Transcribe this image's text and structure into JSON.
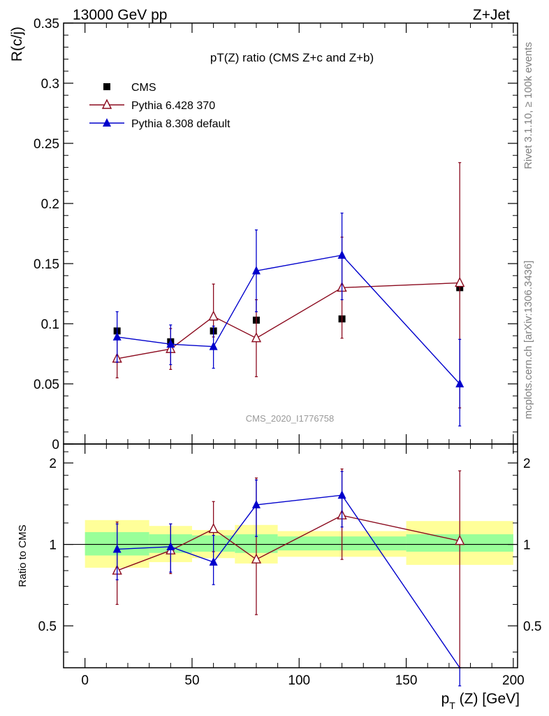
{
  "header": {
    "left": "13000 GeV pp",
    "right": "Z+Jet"
  },
  "side": {
    "rivet": "Rivet 3.1.10, ≥ 100k events",
    "mcplots": "mcplots.cern.ch [arXiv:1306.3436]"
  },
  "chart_data": [
    {
      "type": "scatter",
      "title": "pT(Z) ratio (CMS  Z+c and Z+b)",
      "ylabel": "R(c/j)",
      "watermark": "CMS_2020_I1776758",
      "ylim": [
        0,
        0.35
      ],
      "xlim": [
        -10,
        202
      ],
      "yticks": [
        0,
        0.05,
        0.1,
        0.15,
        0.2,
        0.25,
        0.3,
        0.35
      ],
      "ytick_labels": [
        "0",
        "0.05",
        "0.1",
        "0.15",
        "0.2",
        "0.25",
        "0.3",
        "0.35"
      ],
      "legend_position": "top-left",
      "series": [
        {
          "name": "CMS",
          "marker": "square",
          "color": "#000000",
          "x": [
            15,
            40,
            60,
            80,
            120,
            175
          ],
          "y": [
            0.094,
            0.085,
            0.094,
            0.103,
            0.104,
            0.13
          ]
        },
        {
          "name": "Pythia 6.428 370",
          "marker": "open-triangle",
          "color": "#8b0a1e",
          "x": [
            15,
            40,
            60,
            80,
            120,
            175
          ],
          "y": [
            0.071,
            0.079,
            0.106,
            0.088,
            0.13,
            0.134
          ],
          "err_lo": [
            0.055,
            0.062,
            0.089,
            0.056,
            0.088,
            0.03
          ],
          "err_hi": [
            0.087,
            0.096,
            0.133,
            0.12,
            0.172,
            0.234
          ]
        },
        {
          "name": "Pythia 8.308 default",
          "marker": "filled-triangle",
          "color": "#0000cc",
          "x": [
            15,
            40,
            60,
            80,
            120,
            175
          ],
          "y": [
            0.089,
            0.083,
            0.081,
            0.144,
            0.157,
            0.05
          ],
          "err_lo": [
            0.068,
            0.066,
            0.063,
            0.11,
            0.12,
            0.015
          ],
          "err_hi": [
            0.11,
            0.099,
            0.098,
            0.178,
            0.192,
            0.087
          ]
        }
      ]
    },
    {
      "type": "scatter",
      "ylabel": "Ratio to CMS",
      "xlabel_main": "p",
      "xlabel_sub": "T",
      "xlabel_rest": " (Z) [GeV]",
      "xlim": [
        -10,
        202
      ],
      "ylim_log": [
        0.35,
        2.35
      ],
      "xticks": [
        0,
        50,
        100,
        150,
        200
      ],
      "xtick_labels": [
        "0",
        "50",
        "100",
        "150",
        "200"
      ],
      "yticks": [
        0.5,
        1,
        2
      ],
      "ytick_labels": [
        "0.5",
        "1",
        "2"
      ],
      "bands": {
        "bins": [
          [
            0,
            30
          ],
          [
            30,
            50
          ],
          [
            50,
            70
          ],
          [
            70,
            90
          ],
          [
            90,
            150
          ],
          [
            150,
            200
          ]
        ],
        "inner": [
          [
            0.91,
            1.11
          ],
          [
            0.93,
            1.09
          ],
          [
            0.94,
            1.08
          ],
          [
            0.93,
            1.09
          ],
          [
            0.95,
            1.07
          ],
          [
            0.94,
            1.09
          ]
        ],
        "outer": [
          [
            0.82,
            1.23
          ],
          [
            0.86,
            1.17
          ],
          [
            0.89,
            1.13
          ],
          [
            0.85,
            1.18
          ],
          [
            0.9,
            1.12
          ],
          [
            0.84,
            1.22
          ]
        ],
        "inner_color": "#99ff99",
        "outer_color": "#ffff99"
      },
      "series": [
        {
          "name": "Pythia 6.428 370",
          "color": "#8b0a1e",
          "x": [
            15,
            40,
            60,
            80,
            120,
            175
          ],
          "y": [
            0.8,
            0.95,
            1.14,
            0.88,
            1.28,
            1.03
          ],
          "err_lo": [
            0.6,
            0.78,
            0.94,
            0.55,
            0.88,
            0.3
          ],
          "err_hi": [
            1.21,
            1.19,
            1.44,
            1.76,
            1.9,
            1.87
          ]
        },
        {
          "name": "Pythia 8.308 default",
          "color": "#0000cc",
          "x": [
            15,
            40,
            60,
            80,
            120,
            175
          ],
          "y": [
            0.96,
            0.98,
            0.86,
            1.4,
            1.52,
            0.3
          ],
          "err_lo": [
            0.74,
            0.79,
            0.71,
            1.07,
            1.16,
            0.3
          ],
          "err_hi": [
            1.19,
            1.19,
            1.08,
            1.73,
            1.86,
            0.3
          ]
        }
      ]
    }
  ]
}
